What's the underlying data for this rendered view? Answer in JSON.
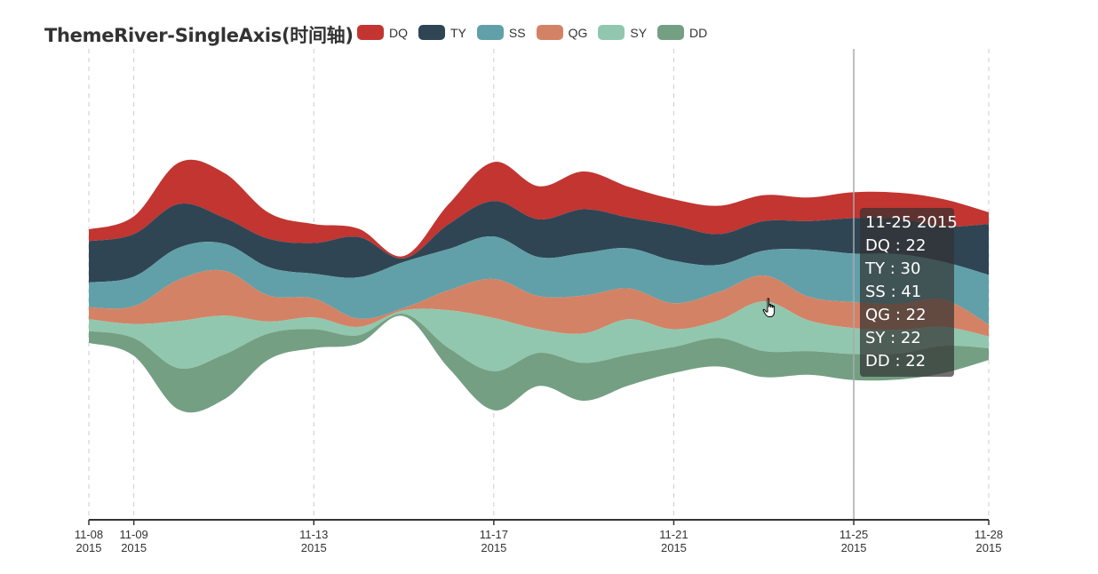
{
  "chart_data": {
    "type": "themeriver",
    "title": "ThemeRiver-SingleAxis(时间轴)",
    "series": [
      {
        "name": "DQ",
        "color": "#c23531"
      },
      {
        "name": "TY",
        "color": "#2f4554"
      },
      {
        "name": "SS",
        "color": "#61a0a8"
      },
      {
        "name": "QG",
        "color": "#d48265"
      },
      {
        "name": "SY",
        "color": "#91c7ae"
      },
      {
        "name": "DD",
        "color": "#749f83"
      }
    ],
    "dates": [
      "2015-11-08",
      "2015-11-09",
      "2015-11-10",
      "2015-11-11",
      "2015-11-12",
      "2015-11-13",
      "2015-11-14",
      "2015-11-15",
      "2015-11-16",
      "2015-11-17",
      "2015-11-18",
      "2015-11-19",
      "2015-11-20",
      "2015-11-21",
      "2015-11-22",
      "2015-11-23",
      "2015-11-24",
      "2015-11-25",
      "2015-11-26",
      "2015-11-27",
      "2015-11-28"
    ],
    "values": {
      "DQ": [
        10,
        15,
        35,
        38,
        22,
        16,
        7,
        2,
        17,
        33,
        28,
        32,
        26,
        22,
        24,
        22,
        20,
        22,
        22,
        23,
        10
      ],
      "TY": [
        35,
        36,
        37,
        22,
        24,
        26,
        34,
        3,
        21,
        30,
        32,
        37,
        26,
        30,
        26,
        25,
        24,
        30,
        30,
        30,
        43
      ],
      "SS": [
        21,
        25,
        27,
        23,
        24,
        21,
        35,
        39,
        35,
        36,
        33,
        36,
        34,
        36,
        23,
        21,
        40,
        41,
        42,
        32,
        42
      ],
      "QG": [
        10,
        15,
        35,
        38,
        22,
        16,
        7,
        2,
        17,
        33,
        28,
        32,
        26,
        22,
        24,
        22,
        20,
        22,
        22,
        23,
        10
      ],
      "SY": [
        10,
        12,
        40,
        33,
        10,
        10,
        7,
        3,
        32,
        45,
        20,
        25,
        30,
        15,
        15,
        42,
        26,
        22,
        20,
        16,
        10
      ],
      "DD": [
        10,
        15,
        35,
        38,
        22,
        16,
        7,
        2,
        17,
        33,
        28,
        32,
        26,
        22,
        24,
        22,
        20,
        22,
        22,
        23,
        10
      ]
    },
    "axis": {
      "ticks": [
        {
          "date": "2015-11-08",
          "line1": "11-08",
          "line2": "2015"
        },
        {
          "date": "2015-11-09",
          "line1": "11-09",
          "line2": "2015"
        },
        {
          "date": "2015-11-13",
          "line1": "11-13",
          "line2": "2015"
        },
        {
          "date": "2015-11-17",
          "line1": "11-17",
          "line2": "2015"
        },
        {
          "date": "2015-11-21",
          "line1": "11-21",
          "line2": "2015"
        },
        {
          "date": "2015-11-25",
          "line1": "11-25",
          "line2": "2015"
        },
        {
          "date": "2015-11-28",
          "line1": "11-28",
          "line2": "2015"
        }
      ]
    },
    "legend_position": "top",
    "split_lines": true,
    "tooltip": {
      "date": "2015-11-25",
      "header": "11-25 2015",
      "rows": [
        "DQ : 22",
        "TY : 30",
        "SS : 41",
        "QG : 22",
        "SY : 22",
        "DD : 22"
      ]
    },
    "pointer_icon": "hand-pointer-icon"
  }
}
